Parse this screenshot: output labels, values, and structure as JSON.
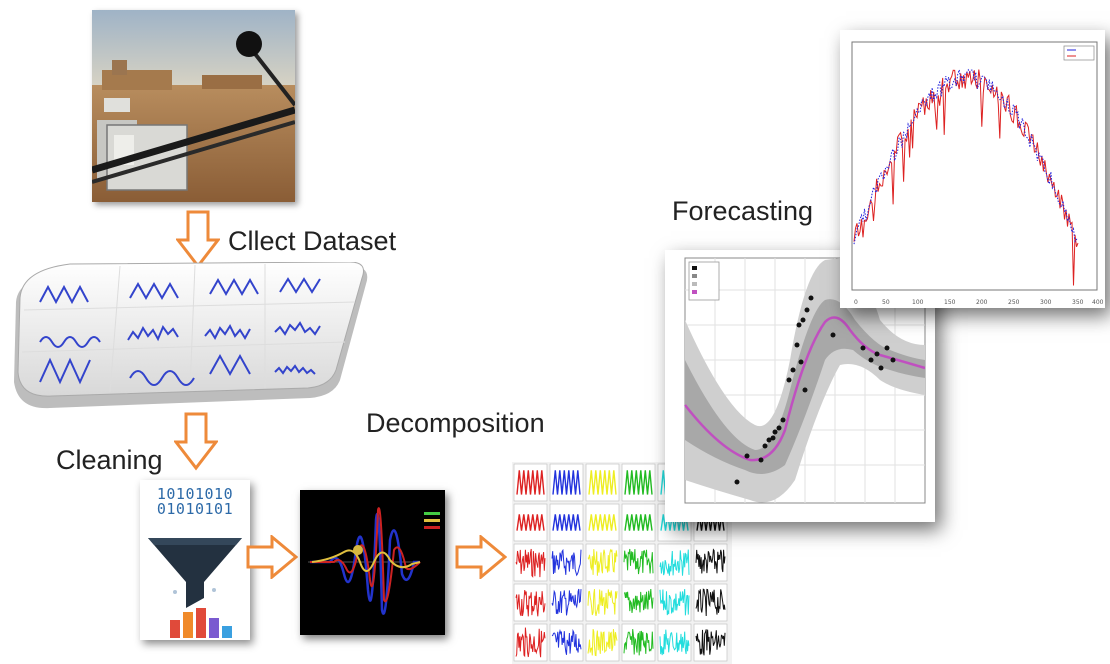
{
  "labels": {
    "collect": "Cllect Dataset",
    "cleaning": "Cleaning",
    "decomposition": "Decomposition",
    "forecasting": "Forecasting"
  },
  "binary": {
    "row1": "10101010",
    "row2": "01010101"
  },
  "colors": {
    "arrow_fill": "#ffffff",
    "arrow_stroke": "#ee8a3a",
    "series_blue": "#2222dd",
    "series_red": "#dd2222",
    "gp_line": "#c050c0"
  },
  "icons": {
    "photo": "weather-station-photo",
    "dataset": "dataset-plot-grid",
    "filter": "funnel-icon",
    "wave": "wavelet-plot",
    "decomp": "decomposition-grid",
    "gp": "gaussian-process-plot",
    "forecast": "forecast-line-plot"
  }
}
